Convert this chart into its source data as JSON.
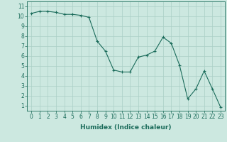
{
  "x": [
    0,
    1,
    2,
    3,
    4,
    5,
    6,
    7,
    8,
    9,
    10,
    11,
    12,
    13,
    14,
    15,
    16,
    17,
    18,
    19,
    20,
    21,
    22,
    23
  ],
  "y": [
    10.3,
    10.5,
    10.5,
    10.4,
    10.2,
    10.2,
    10.1,
    9.9,
    7.5,
    6.5,
    4.6,
    4.4,
    4.4,
    5.9,
    6.1,
    6.5,
    7.9,
    7.3,
    5.1,
    1.7,
    2.7,
    4.5,
    2.7,
    0.85
  ],
  "xlabel": "Humidex (Indice chaleur)",
  "bg_color": "#cce8e0",
  "line_color": "#1a6b5a",
  "grid_color": "#aacfc6",
  "ylim": [
    0.5,
    11.5
  ],
  "xlim": [
    -0.5,
    23.5
  ],
  "yticks": [
    1,
    2,
    3,
    4,
    5,
    6,
    7,
    8,
    9,
    10,
    11
  ],
  "xticks": [
    0,
    1,
    2,
    3,
    4,
    5,
    6,
    7,
    8,
    9,
    10,
    11,
    12,
    13,
    14,
    15,
    16,
    17,
    18,
    19,
    20,
    21,
    22,
    23
  ],
  "tick_fontsize": 5.5,
  "xlabel_fontsize": 6.5
}
